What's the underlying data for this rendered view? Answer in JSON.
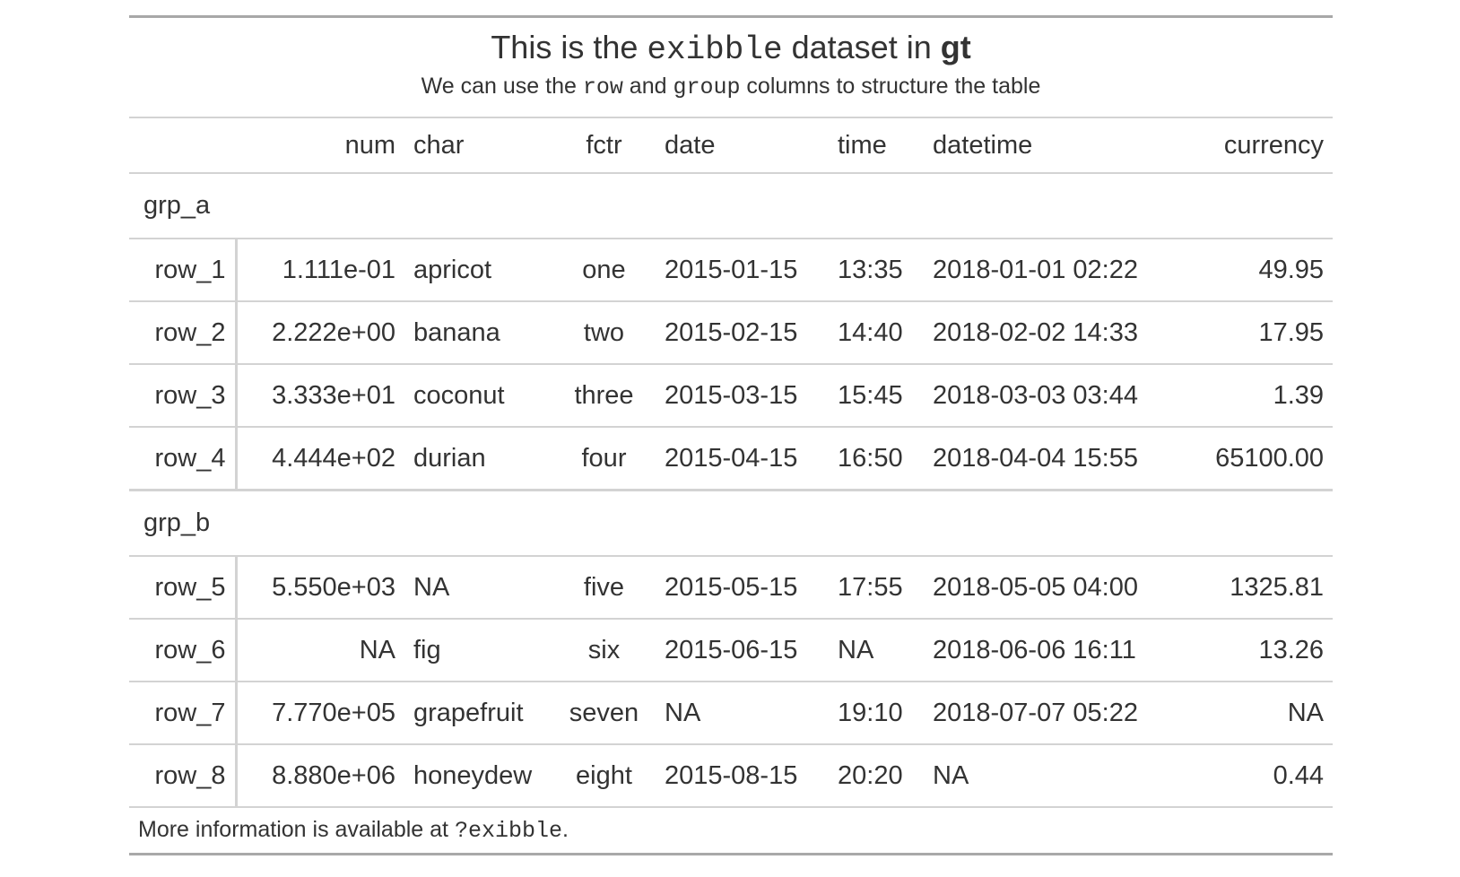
{
  "title": {
    "pre": "This is the ",
    "code": "exibble",
    "mid": " dataset in ",
    "bold": "gt"
  },
  "subtitle": {
    "a": "We can use the ",
    "code1": "row",
    "b": " and ",
    "code2": "group",
    "c": " columns to structure the table"
  },
  "columns": [
    "num",
    "char",
    "fctr",
    "date",
    "time",
    "datetime",
    "currency"
  ],
  "groups": [
    {
      "label": "grp_a",
      "rows": [
        [
          "row_1",
          "1.111e-01",
          "apricot",
          "one",
          "2015-01-15",
          "13:35",
          "2018-01-01 02:22",
          "49.95"
        ],
        [
          "row_2",
          "2.222e+00",
          "banana",
          "two",
          "2015-02-15",
          "14:40",
          "2018-02-02 14:33",
          "17.95"
        ],
        [
          "row_3",
          "3.333e+01",
          "coconut",
          "three",
          "2015-03-15",
          "15:45",
          "2018-03-03 03:44",
          "1.39"
        ],
        [
          "row_4",
          "4.444e+02",
          "durian",
          "four",
          "2015-04-15",
          "16:50",
          "2018-04-04 15:55",
          "65100.00"
        ]
      ]
    },
    {
      "label": "grp_b",
      "rows": [
        [
          "row_5",
          "5.550e+03",
          "NA",
          "five",
          "2015-05-15",
          "17:55",
          "2018-05-05 04:00",
          "1325.81"
        ],
        [
          "row_6",
          "NA",
          "fig",
          "six",
          "2015-06-15",
          "NA",
          "2018-06-06 16:11",
          "13.26"
        ],
        [
          "row_7",
          "7.770e+05",
          "grapefruit",
          "seven",
          "NA",
          "19:10",
          "2018-07-07 05:22",
          "NA"
        ],
        [
          "row_8",
          "8.880e+06",
          "honeydew",
          "eight",
          "2015-08-15",
          "20:20",
          "NA",
          "0.44"
        ]
      ]
    }
  ],
  "footnote": {
    "pre": "More information is available at ",
    "code": "?exibble",
    "post": "."
  }
}
